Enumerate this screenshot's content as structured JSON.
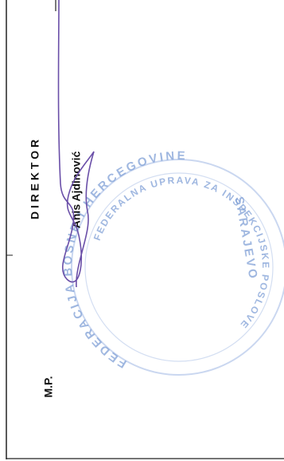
{
  "signature_block": {
    "title": "D I R E K T O R",
    "name": "Anis Ajdinović",
    "seal_mark": "M.P."
  },
  "stamp": {
    "outer_text": "FEDERACIJA BOSNE I HERCEGOVINE",
    "inner_text": "FEDERALNA UPRAVA ZA INSPEKCIJSKE POSLOVE",
    "city": "SARAJEVO"
  }
}
